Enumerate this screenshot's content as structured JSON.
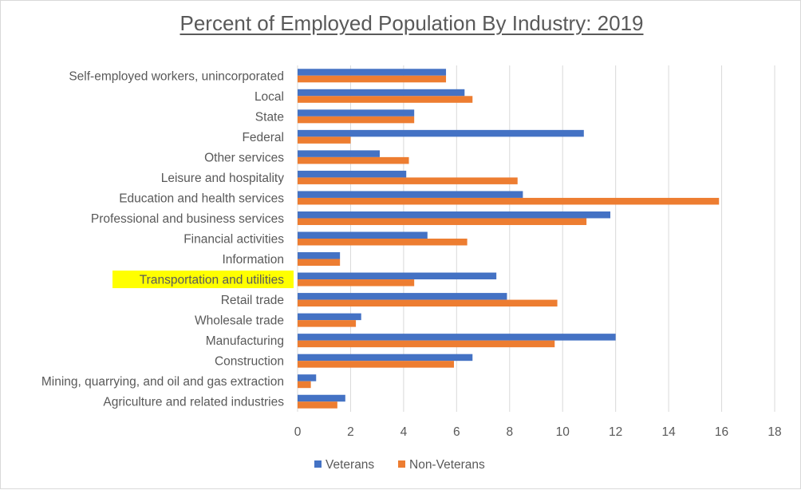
{
  "chart_data": {
    "type": "bar",
    "orientation": "horizontal",
    "title": "Percent of Employed Population By Industry: 2019",
    "xlabel": "",
    "ylabel": "",
    "xlim": [
      0,
      18
    ],
    "xticks": [
      0,
      2,
      4,
      6,
      8,
      10,
      12,
      14,
      16,
      18
    ],
    "grid": true,
    "legend_position": "bottom",
    "highlighted_category": "Transportation and utilities",
    "highlight_color": "#ffff00",
    "categories": [
      "Self-employed workers, unincorporated",
      "Local",
      "State",
      "Federal",
      "Other services",
      "Leisure and hospitality",
      "Education and health services",
      "Professional and business services",
      "Financial activities",
      "Information",
      "Transportation and utilities",
      "Retail trade",
      "Wholesale trade",
      "Manufacturing",
      "Construction",
      "Mining, quarrying, and oil and gas extraction",
      "Agriculture and related industries"
    ],
    "series": [
      {
        "name": "Veterans",
        "color": "#4472c4",
        "values": [
          5.6,
          6.3,
          4.4,
          10.8,
          3.1,
          4.1,
          8.5,
          11.8,
          4.9,
          1.6,
          7.5,
          7.9,
          2.4,
          12.0,
          6.6,
          0.7,
          1.8
        ]
      },
      {
        "name": "Non-Veterans",
        "color": "#ed7d31",
        "values": [
          5.6,
          6.6,
          4.4,
          2.0,
          4.2,
          8.3,
          15.9,
          10.9,
          6.4,
          1.6,
          4.4,
          9.8,
          2.2,
          9.7,
          5.9,
          0.5,
          1.5
        ]
      }
    ]
  }
}
